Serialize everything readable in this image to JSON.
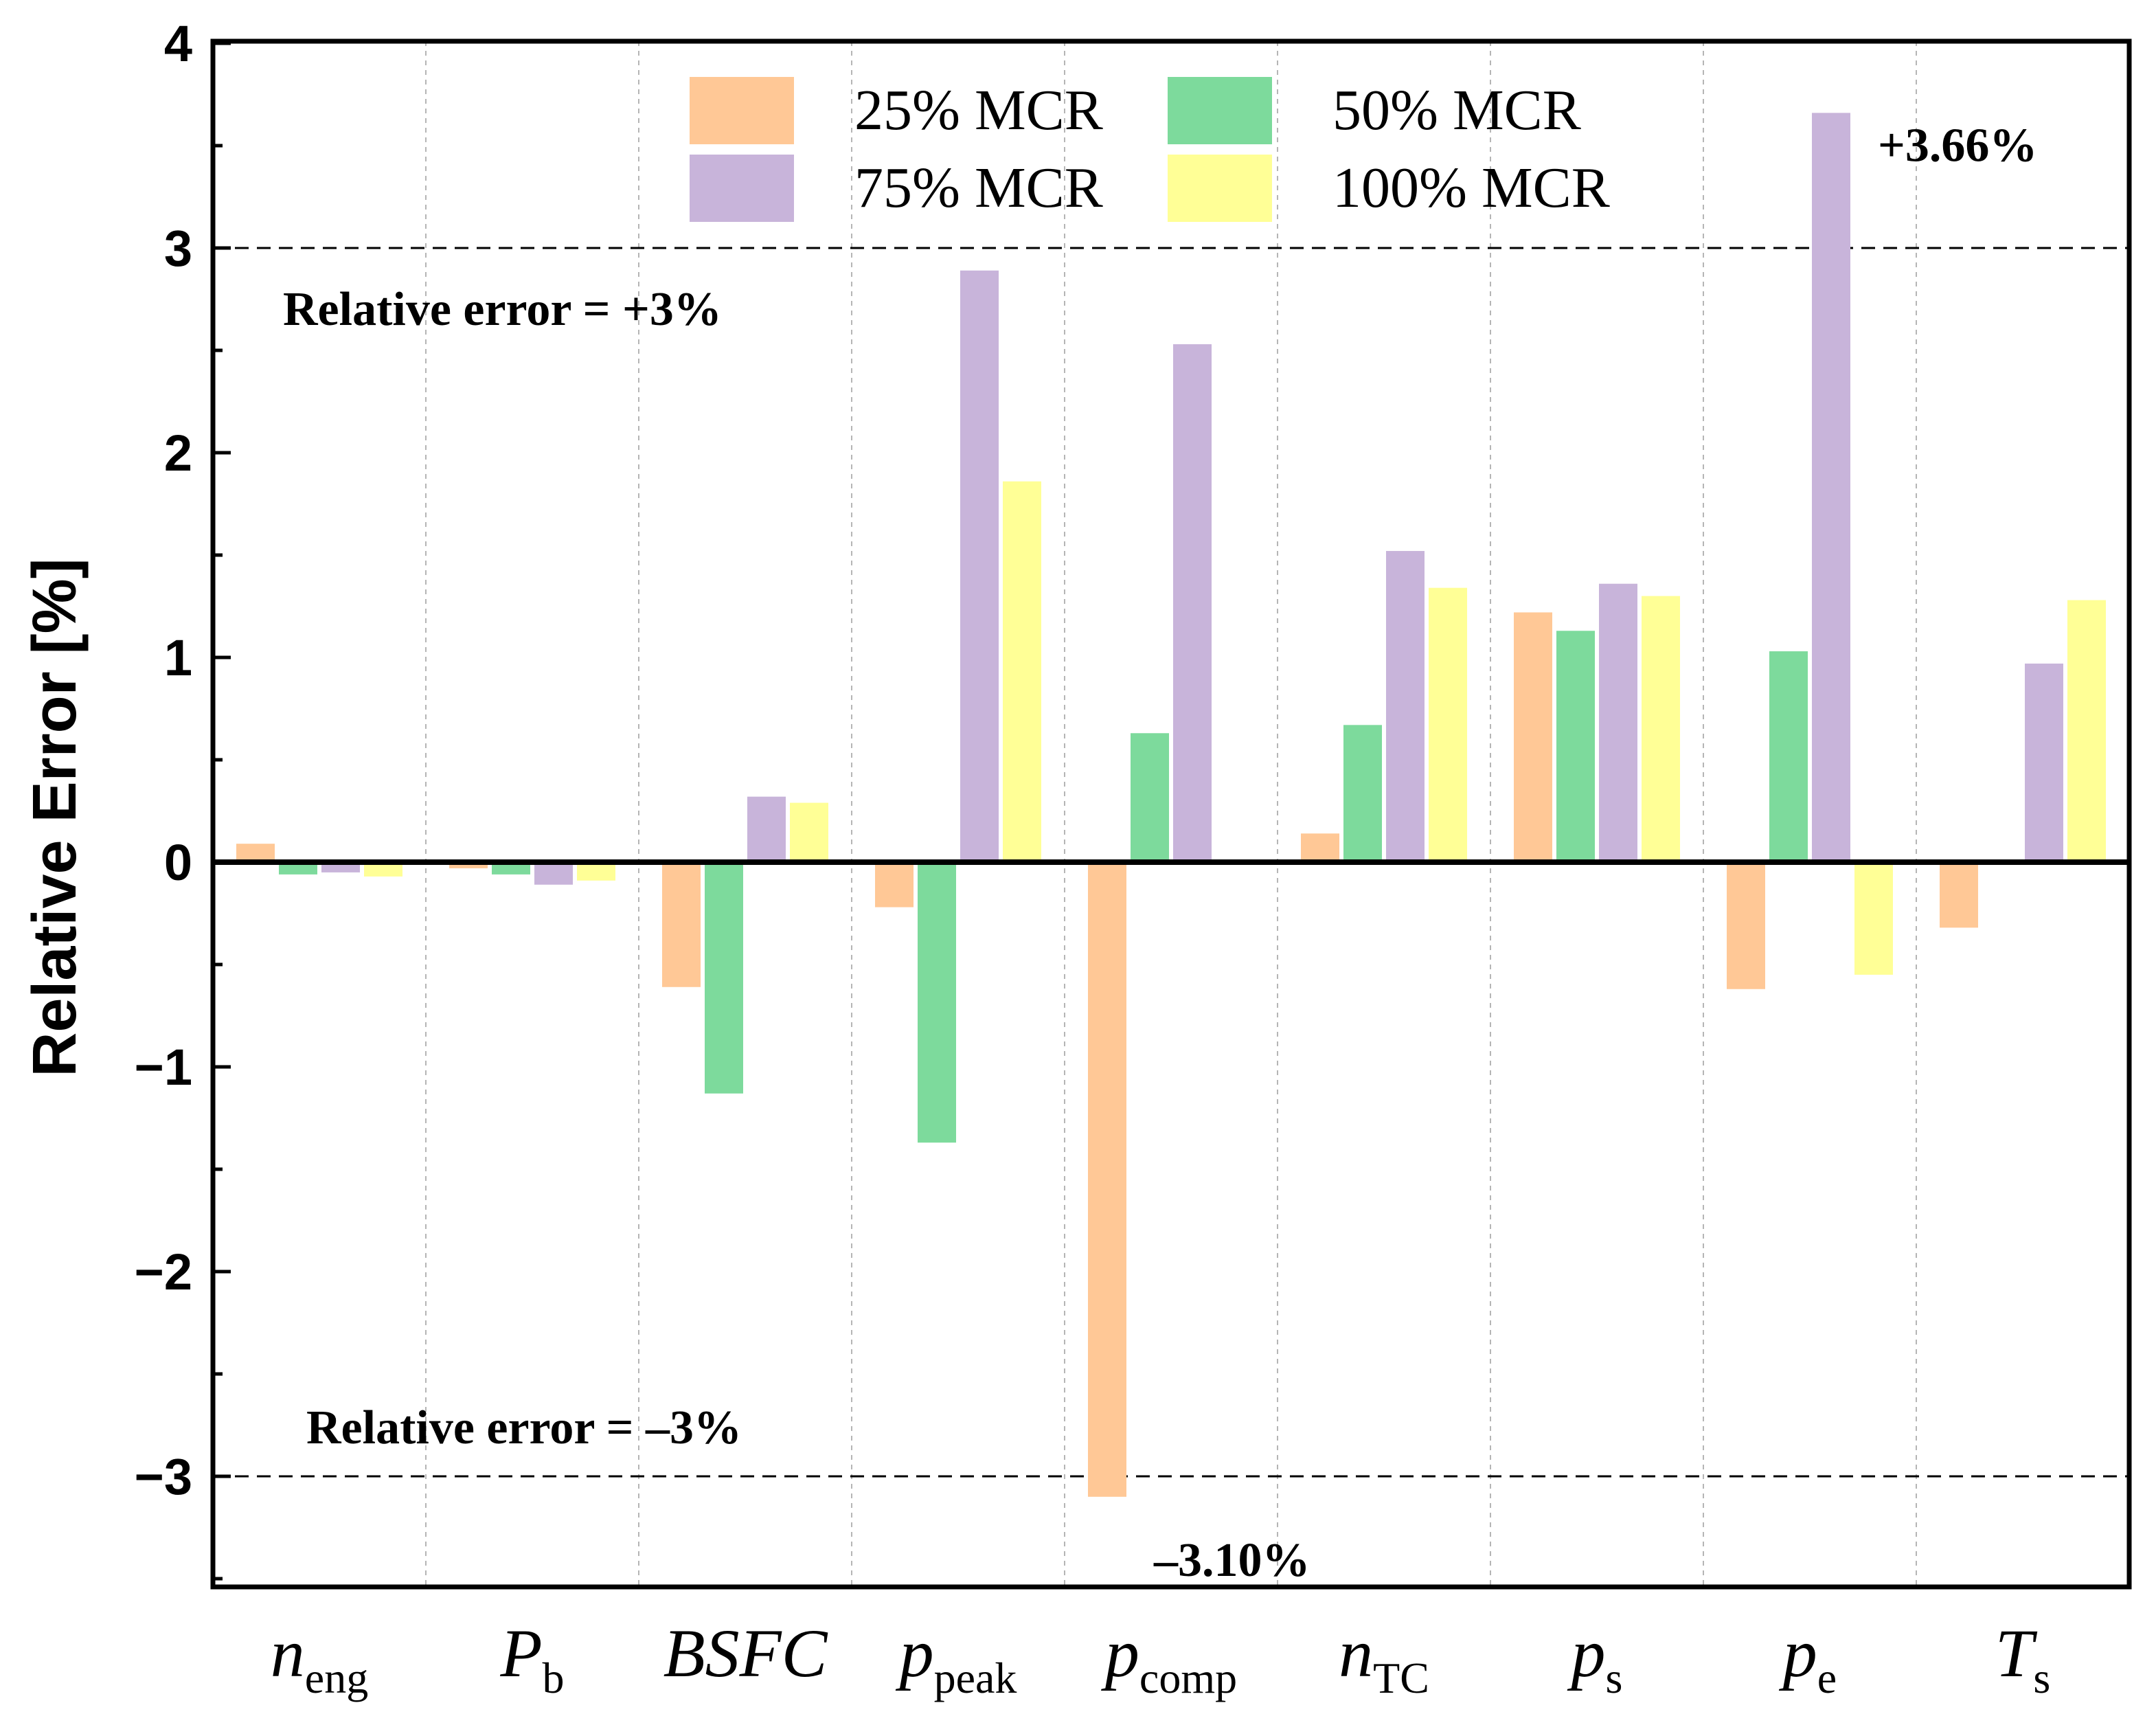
{
  "chart_data": {
    "type": "bar",
    "ylabel": "Relative Error [%]",
    "ylim": [
      -3.5,
      4
    ],
    "yticks": [
      -3,
      -2,
      -1,
      0,
      1,
      2,
      3,
      4
    ],
    "ytick_labels": [
      "−3",
      "−2",
      "−1",
      "0",
      "1",
      "2",
      "3",
      "4"
    ],
    "grid": "vertical dashed separators between categories",
    "legend_position": "top-center",
    "categories": [
      {
        "main": "n",
        "sub": "eng"
      },
      {
        "main": "P",
        "sub": "b"
      },
      {
        "main": "BSFC",
        "sub": ""
      },
      {
        "main": "p",
        "sub": "peak"
      },
      {
        "main": "p",
        "sub": "comp"
      },
      {
        "main": "n",
        "sub": "TC"
      },
      {
        "main": "p",
        "sub": "s"
      },
      {
        "main": "p",
        "sub": "e"
      },
      {
        "main": "T",
        "sub": "s"
      }
    ],
    "series": [
      {
        "name": "25% MCR",
        "color": "#FFC896",
        "values": [
          0.09,
          -0.03,
          -0.61,
          -0.22,
          -3.1,
          0.14,
          1.22,
          -0.62,
          -0.32
        ]
      },
      {
        "name": "50% MCR",
        "color": "#7DDA9C",
        "values": [
          -0.06,
          -0.06,
          -1.13,
          -1.37,
          0.63,
          0.67,
          1.13,
          1.03,
          0.0
        ]
      },
      {
        "name": "75% MCR",
        "color": "#C8B4DA",
        "values": [
          -0.05,
          -0.11,
          0.32,
          2.89,
          2.53,
          1.52,
          1.36,
          3.66,
          0.97
        ]
      },
      {
        "name": "100% MCR",
        "color": "#FFFF96",
        "values": [
          -0.07,
          -0.09,
          0.29,
          1.86,
          0.0,
          1.34,
          1.3,
          -0.55,
          1.28
        ]
      }
    ],
    "reference_lines": [
      {
        "value": 3,
        "label": "Relative error = +3%"
      },
      {
        "value": -3,
        "label": "Relative error = –3%"
      }
    ],
    "annotations": [
      {
        "text": "+3.66%",
        "series": 2,
        "category": 7
      },
      {
        "text": "–3.10%",
        "series": 0,
        "category": 4
      }
    ]
  }
}
